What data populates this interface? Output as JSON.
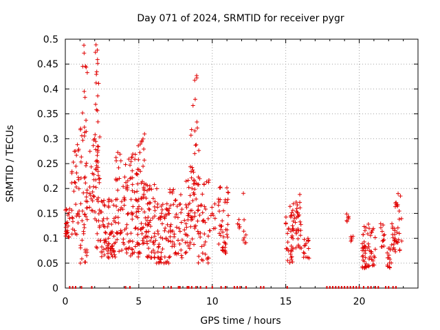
{
  "chart_data": {
    "type": "scatter",
    "title": "Day 071 of 2024, SRMTID for receiver pygr",
    "xlabel": "GPS time / hours",
    "ylabel": "SRMTID / TECUs",
    "xlim": [
      0,
      24
    ],
    "ylim": [
      0,
      0.5
    ],
    "xticks": [
      0,
      5,
      10,
      15,
      20
    ],
    "xtick_labels": [
      "0",
      "5",
      "10",
      "15",
      "20"
    ],
    "yticks": [
      0,
      0.05,
      0.1,
      0.15,
      0.2,
      0.25,
      0.3,
      0.35,
      0.4,
      0.45,
      0.5
    ],
    "ytick_labels": [
      "0",
      "0.05",
      "0.1",
      "0.15",
      "0.2",
      "0.25",
      "0.3",
      "0.35",
      "0.4",
      "0.45",
      "0.5"
    ],
    "grid": true,
    "marker": "plus",
    "series_color": "#e00000",
    "clusters": [
      {
        "name": "t0.0",
        "x_range": [
          0.0,
          0.3
        ],
        "y_range": [
          0.1,
          0.16
        ],
        "count": 25
      },
      {
        "name": "t0.5",
        "x_range": [
          0.4,
          1.0
        ],
        "y_range": [
          0.1,
          0.29
        ],
        "count": 35
      },
      {
        "name": "t1.0",
        "x_range": [
          1.0,
          1.5
        ],
        "y_range": [
          0.05,
          0.33
        ],
        "count": 45
      },
      {
        "name": "t1.3",
        "x_range": [
          1.1,
          1.5
        ],
        "y_range": [
          0.3,
          0.49
        ],
        "count": 12
      },
      {
        "name": "t1.8",
        "x_range": [
          1.6,
          2.0
        ],
        "y_range": [
          0.15,
          0.3
        ],
        "count": 20
      },
      {
        "name": "t2.1",
        "x_range": [
          2.0,
          2.4
        ],
        "y_range": [
          0.08,
          0.31
        ],
        "count": 40
      },
      {
        "name": "t2.2",
        "x_range": [
          2.05,
          2.3
        ],
        "y_range": [
          0.33,
          0.49
        ],
        "count": 14
      },
      {
        "name": "t2.7",
        "x_range": [
          2.4,
          3.4
        ],
        "y_range": [
          0.06,
          0.18
        ],
        "count": 70
      },
      {
        "name": "t3.6",
        "x_range": [
          3.4,
          4.3
        ],
        "y_range": [
          0.07,
          0.29
        ],
        "count": 60
      },
      {
        "name": "t4.6",
        "x_range": [
          4.3,
          5.0
        ],
        "y_range": [
          0.06,
          0.27
        ],
        "count": 50
      },
      {
        "name": "t5.1",
        "x_range": [
          4.9,
          5.4
        ],
        "y_range": [
          0.07,
          0.31
        ],
        "count": 40
      },
      {
        "name": "t5.8",
        "x_range": [
          5.3,
          6.3
        ],
        "y_range": [
          0.06,
          0.21
        ],
        "count": 70
      },
      {
        "name": "t6.6",
        "x_range": [
          6.2,
          7.2
        ],
        "y_range": [
          0.05,
          0.17
        ],
        "count": 60
      },
      {
        "name": "t7.5",
        "x_range": [
          7.0,
          8.0
        ],
        "y_range": [
          0.06,
          0.21
        ],
        "count": 45
      },
      {
        "name": "t8.4",
        "x_range": [
          8.1,
          8.8
        ],
        "y_range": [
          0.07,
          0.25
        ],
        "count": 40
      },
      {
        "name": "t8.9",
        "x_range": [
          8.5,
          9.1
        ],
        "y_range": [
          0.12,
          0.38
        ],
        "count": 35
      },
      {
        "name": "t9.0",
        "x_range": [
          8.8,
          9.0
        ],
        "y_range": [
          0.41,
          0.43
        ],
        "count": 3
      },
      {
        "name": "t9.5",
        "x_range": [
          9.0,
          9.8
        ],
        "y_range": [
          0.05,
          0.22
        ],
        "count": 40
      },
      {
        "name": "t10.0",
        "x_range": [
          9.8,
          10.2
        ],
        "y_range": [
          0.11,
          0.17
        ],
        "count": 10
      },
      {
        "name": "t10.8",
        "x_range": [
          10.4,
          11.1
        ],
        "y_range": [
          0.07,
          0.21
        ],
        "count": 45
      },
      {
        "name": "t11.8",
        "x_range": [
          11.7,
          11.9
        ],
        "y_range": [
          0.1,
          0.14
        ],
        "count": 5
      },
      {
        "name": "t12.2",
        "x_range": [
          12.1,
          12.3
        ],
        "y_range": [
          0.09,
          0.21
        ],
        "count": 8
      },
      {
        "name": "t15.3",
        "x_range": [
          15.0,
          15.6
        ],
        "y_range": [
          0.05,
          0.17
        ],
        "count": 40
      },
      {
        "name": "t15.9",
        "x_range": [
          15.6,
          16.1
        ],
        "y_range": [
          0.08,
          0.2
        ],
        "count": 30
      },
      {
        "name": "t16.4",
        "x_range": [
          16.2,
          16.6
        ],
        "y_range": [
          0.06,
          0.1
        ],
        "count": 15
      },
      {
        "name": "t19.2",
        "x_range": [
          19.1,
          19.3
        ],
        "y_range": [
          0.13,
          0.15
        ],
        "count": 6
      },
      {
        "name": "t19.5",
        "x_range": [
          19.4,
          19.6
        ],
        "y_range": [
          0.09,
          0.12
        ],
        "count": 5
      },
      {
        "name": "t20.5",
        "x_range": [
          20.2,
          21.1
        ],
        "y_range": [
          0.04,
          0.13
        ],
        "count": 60
      },
      {
        "name": "t21.6",
        "x_range": [
          21.4,
          21.8
        ],
        "y_range": [
          0.08,
          0.13
        ],
        "count": 12
      },
      {
        "name": "t22.0",
        "x_range": [
          21.9,
          22.2
        ],
        "y_range": [
          0.04,
          0.09
        ],
        "count": 15
      },
      {
        "name": "t22.6",
        "x_range": [
          22.2,
          22.9
        ],
        "y_range": [
          0.07,
          0.19
        ],
        "count": 40
      }
    ],
    "zero_marks": [
      0.3,
      0.5,
      0.7,
      1.1,
      1.8,
      4.1,
      4.4,
      6.7,
      7.2,
      7.7,
      7.8,
      8.3,
      8.4,
      8.6,
      8.9,
      9.2,
      9.6,
      10.0,
      10.6,
      10.9,
      11.5,
      11.7,
      11.9,
      12.3,
      13.3,
      13.5,
      15.1,
      17.8,
      18.0,
      18.2,
      18.4,
      18.6,
      18.8,
      19.0,
      19.2,
      19.4,
      19.6,
      19.8,
      20.0,
      20.3,
      20.6,
      20.8,
      21.1,
      21.3,
      21.8,
      22.0,
      22.3,
      22.5
    ]
  }
}
